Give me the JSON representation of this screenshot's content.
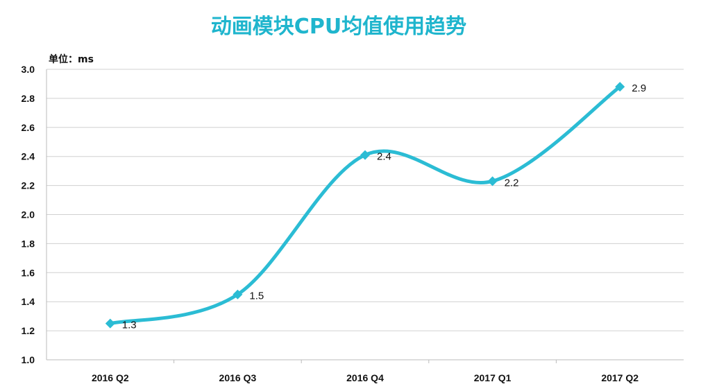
{
  "chart_data": {
    "type": "line",
    "title": "动画模块CPU均值使用趋势",
    "unit_label": "单位：ms",
    "xlabel": "",
    "ylabel": "",
    "categories": [
      "2016 Q2",
      "2016 Q3",
      "2016 Q4",
      "2017 Q1",
      "2017 Q2"
    ],
    "series": [
      {
        "values": [
          1.25,
          1.45,
          2.41,
          2.23,
          2.88
        ],
        "data_labels": [
          "1.3",
          "1.5",
          "2.4",
          "2.2",
          "2.9"
        ],
        "marker": "diamond",
        "smooth": true
      }
    ],
    "ylim": [
      1.0,
      3.0
    ],
    "yticks": [
      "1.0",
      "1.2",
      "1.4",
      "1.6",
      "1.8",
      "2.0",
      "2.2",
      "2.4",
      "2.6",
      "2.8",
      "3.0"
    ],
    "grid": true,
    "legend": "none",
    "colors": {
      "title": "#1fb5cd",
      "line": "#2bbcd4",
      "grid": "#d0d0d0",
      "axis": "#bbbbbb"
    }
  }
}
